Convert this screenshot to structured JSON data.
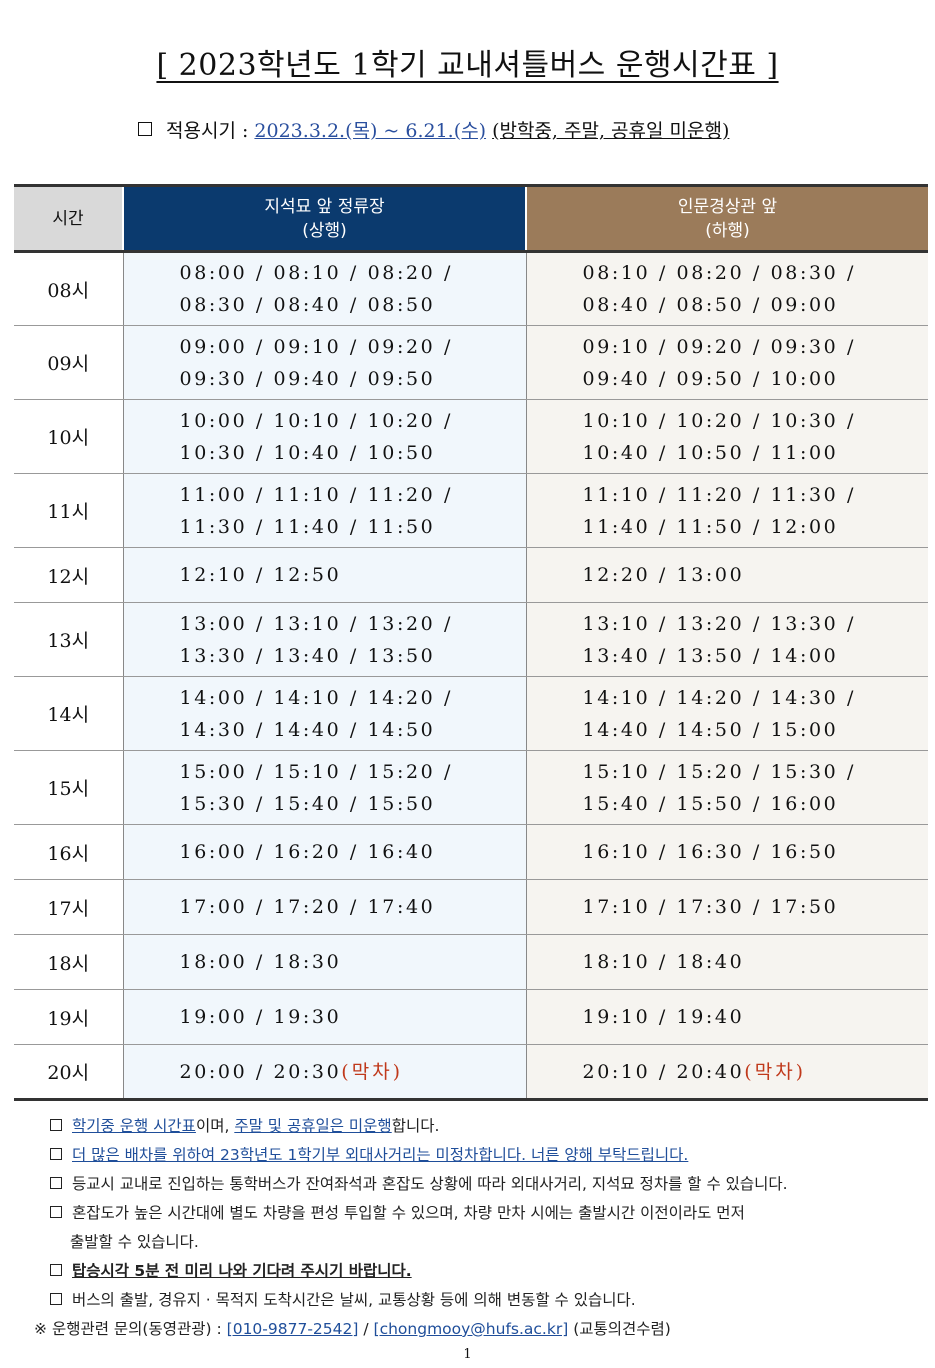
{
  "title": "[ 2023학년도 1학기 교내셔틀버스 운행시간표 ]",
  "period": {
    "label": "적용시기 :",
    "dates": "2023.3.2.(목) ~ 6.21.(수)",
    "note": "(방학중, 주말, 공휴일 미운행)"
  },
  "table": {
    "header_time": "시간",
    "header_up_line1": "지석묘 앞 정류장",
    "header_up_line2": "(상행)",
    "header_down_line1": "인문경상관 앞",
    "header_down_line2": "(하행)",
    "last_bus_label": "(막차)",
    "rows": [
      {
        "hour": "08시",
        "up": "08:00 / 08:10 / 08:20 /\n08:30 / 08:40 / 08:50",
        "down": "08:10 / 08:20 / 08:30 /\n08:40 / 08:50 / 09:00"
      },
      {
        "hour": "09시",
        "up": "09:00 / 09:10 / 09:20 /\n09:30 / 09:40 / 09:50",
        "down": "09:10 / 09:20 / 09:30 /\n09:40 / 09:50 / 10:00"
      },
      {
        "hour": "10시",
        "up": "10:00 / 10:10 / 10:20 /\n10:30 / 10:40 / 10:50",
        "down": "10:10 / 10:20 / 10:30 /\n10:40 / 10:50 / 11:00"
      },
      {
        "hour": "11시",
        "up": "11:00 / 11:10 / 11:20 /\n11:30 / 11:40 / 11:50",
        "down": "11:10 / 11:20 / 11:30 /\n11:40 / 11:50 / 12:00"
      },
      {
        "hour": "12시",
        "up": "12:10 / 12:50",
        "down": "12:20 / 13:00"
      },
      {
        "hour": "13시",
        "up": "13:00 / 13:10 / 13:20 /\n13:30 / 13:40 / 13:50",
        "down": "13:10 / 13:20 / 13:30 /\n13:40 / 13:50 / 14:00"
      },
      {
        "hour": "14시",
        "up": "14:00 / 14:10 / 14:20 /\n14:30 / 14:40 / 14:50",
        "down": "14:10 / 14:20 / 14:30 /\n14:40 / 14:50 / 15:00"
      },
      {
        "hour": "15시",
        "up": "15:00 / 15:10 / 15:20 /\n15:30 / 15:40 / 15:50",
        "down": "15:10 / 15:20 / 15:30 /\n15:40 / 15:50 / 16:00"
      },
      {
        "hour": "16시",
        "up": "16:00 / 16:20 / 16:40",
        "down": "16:10 / 16:30 / 16:50"
      },
      {
        "hour": "17시",
        "up": "17:00 / 17:20 / 17:40",
        "down": "17:10 / 17:30 / 17:50"
      },
      {
        "hour": "18시",
        "up": "18:00 / 18:30",
        "down": "18:10 / 18:40"
      },
      {
        "hour": "19시",
        "up": "19:00 / 19:30",
        "down": "19:10 / 19:40"
      },
      {
        "hour": "20시",
        "up": "20:00 / 20:30",
        "down": "20:10 / 20:40"
      }
    ]
  },
  "notes": {
    "n1_a": "학기중 운행 시간표",
    "n1_b": "이며, ",
    "n1_c": "주말 및 공휴일은 미운행",
    "n1_d": "합니다.",
    "n2": "더 많은 배차를 위하여 23학년도 1학기부 외대사거리는 미정차합니다. 너른 양해 부탁드립니다.",
    "n3": "등교시 교내로 진입하는 통학버스가 잔여좌석과 혼잡도 상황에 따라 외대사거리, 지석묘 정차를 할 수 있습니다.",
    "n4_line1": "혼잡도가 높은 시간대에 별도 차량을 편성 투입할 수 있으며, 차량 만차 시에는 출발시간 이전이라도 먼저",
    "n4_line2": "출발할 수 있습니다.",
    "n5": "탑승시각 5분 전 미리 나와 기다려 주시기 바랍니다.",
    "n6": "버스의 출발, 경유지 · 목적지 도착시간은 날씨, 교통상황 등에 의해 변동할 수 있습니다.",
    "contact_mark": "※",
    "contact_label": "운행관련 문의(동영관광) :",
    "contact_phone": "[010-9877-2542]",
    "contact_sep": "/",
    "contact_email": "[chongmooy@hufs.ac.kr]",
    "contact_note": "(교통의견수렴)"
  },
  "page_number": "1",
  "colors": {
    "up_header": "#0b3a6e",
    "down_header": "#9b7b5a",
    "last_bus": "#c0391b",
    "link_blue": "#1f4e9a"
  }
}
